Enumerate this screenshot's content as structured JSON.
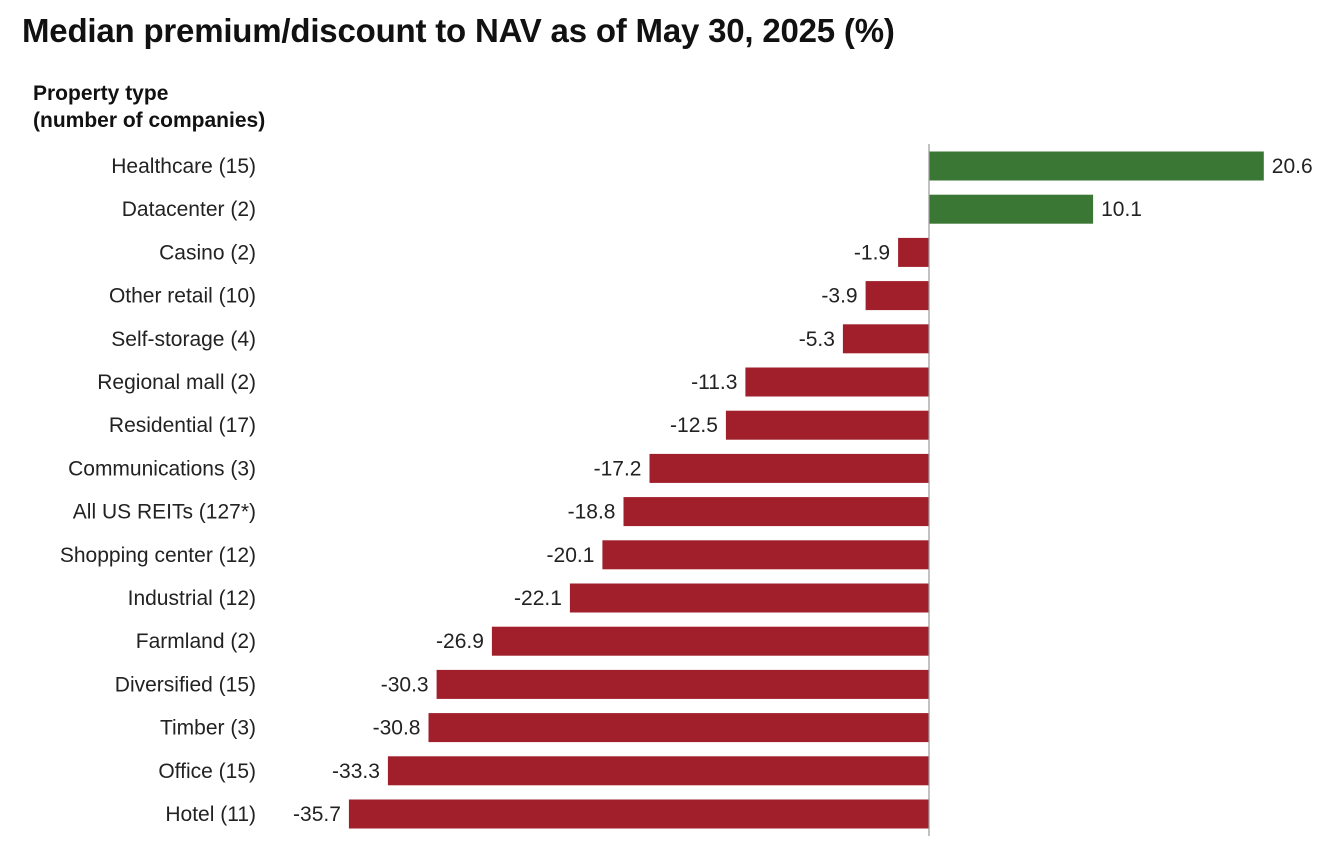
{
  "chart_data": {
    "type": "bar",
    "orientation": "horizontal",
    "title": "Median premium/discount to NAV as of May 30, 2025 (%)",
    "ylabel": [
      "Property type",
      "(number of companies)"
    ],
    "xlabel": "",
    "categories": [
      "Healthcare (15)",
      "Datacenter (2)",
      "Casino (2)",
      "Other retail (10)",
      "Self-storage (4)",
      "Regional mall (2)",
      "Residential (17)",
      "Communications (3)",
      "All US REITs (127*)",
      "Shopping center (12)",
      "Industrial (12)",
      "Farmland (2)",
      "Diversified (15)",
      "Timber (3)",
      "Office (15)",
      "Hotel (11)"
    ],
    "values": [
      20.6,
      10.1,
      -1.9,
      -3.9,
      -5.3,
      -11.3,
      -12.5,
      -17.2,
      -18.8,
      -20.1,
      -22.1,
      -26.9,
      -30.3,
      -30.8,
      -33.3,
      -35.7
    ],
    "value_labels": [
      "20.6",
      "10.1",
      "-1.9",
      "-3.9",
      "-5.3",
      "-11.3",
      "-12.5",
      "-17.2",
      "-18.8",
      "-20.1",
      "-22.1",
      "-26.9",
      "-30.3",
      "-30.8",
      "-33.3",
      "-35.7"
    ],
    "xlim": [
      -35.7,
      20.6
    ],
    "grid": false,
    "legend": "none",
    "colors": {
      "positive": "#3a7634",
      "negative": "#a01f2a",
      "zero_line": "#9a9a9a"
    }
  }
}
